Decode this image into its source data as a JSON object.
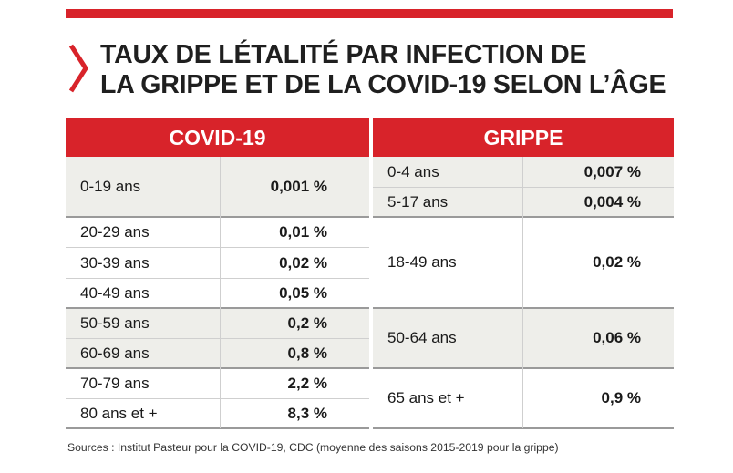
{
  "title": {
    "line1": "TAUX DE LÉTALITÉ PAR INFECTION DE",
    "line2": "LA GRIPPE ET DE LA COVID-19 SELON L’ÂGE"
  },
  "colors": {
    "accent": "#d8232a",
    "shaded_band": "#eeeeea"
  },
  "icons": {
    "title_marker": "chevron-right-icon"
  },
  "covid": {
    "header": "COVID-19",
    "rows": [
      {
        "age": "0-19 ans",
        "rate": "0,001 %"
      },
      {
        "age": "20-29 ans",
        "rate": "0,01 %"
      },
      {
        "age": "30-39 ans",
        "rate": "0,02 %"
      },
      {
        "age": "40-49 ans",
        "rate": "0,05 %"
      },
      {
        "age": "50-59 ans",
        "rate": "0,2 %"
      },
      {
        "age": "60-69 ans",
        "rate": "0,8 %"
      },
      {
        "age": "70-79 ans",
        "rate": "2,2 %"
      },
      {
        "age": "80 ans et +",
        "rate": "8,3 %"
      }
    ]
  },
  "grippe": {
    "header": "GRIPPE",
    "rows": [
      {
        "age": "0-4 ans",
        "rate": "0,007 %"
      },
      {
        "age": "5-17 ans",
        "rate": "0,004 %"
      },
      {
        "age": "18-49 ans",
        "rate": "0,02 %"
      },
      {
        "age": "50-64 ans",
        "rate": "0,06 %"
      },
      {
        "age": "65 ans et +",
        "rate": "0,9 %"
      }
    ]
  },
  "source": "Sources : Institut Pasteur pour la COVID-19, CDC (moyenne des saisons 2015-2019 pour la grippe)"
}
